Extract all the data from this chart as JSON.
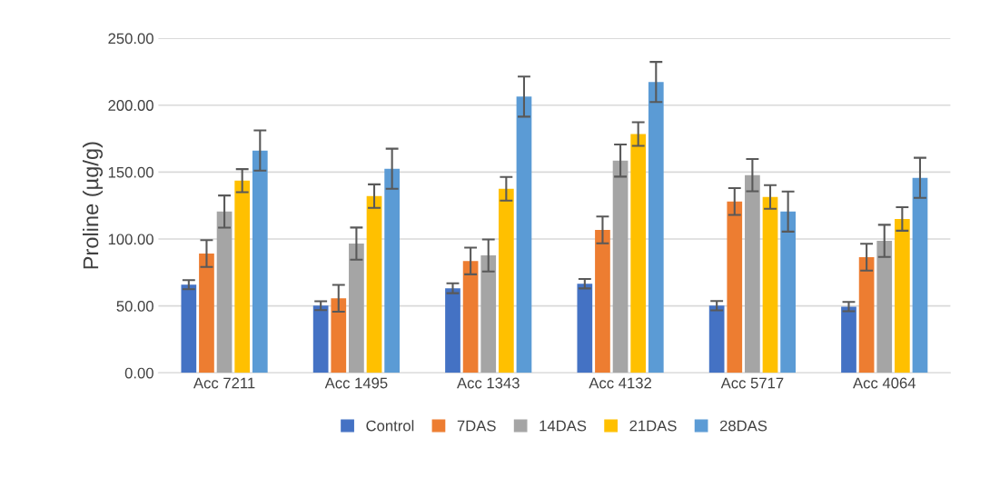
{
  "chart_data": {
    "type": "bar",
    "ylabel": "Proline (µg/g)",
    "categories": [
      "Acc 7211",
      "Acc 1495",
      "Acc 1343",
      "Acc 4132",
      "Acc 5717",
      "Acc 4064"
    ],
    "series": [
      {
        "name": "Control",
        "color": "#4472c4",
        "values": [
          65.9,
          50.2,
          63.2,
          66.6,
          50.2,
          49.5
        ],
        "errors": [
          3.4,
          3.3,
          3.7,
          3.5,
          3.5,
          3.5
        ]
      },
      {
        "name": "7DAS",
        "color": "#ed7d31",
        "values": [
          89.1,
          55.7,
          83.6,
          106.8,
          128,
          86.4
        ],
        "errors": [
          10,
          10,
          10,
          10,
          10,
          10
        ]
      },
      {
        "name": "14DAS",
        "color": "#a5a5a5",
        "values": [
          120.5,
          96.6,
          87.7,
          158.6,
          147.7,
          98.6
        ],
        "errors": [
          12,
          12,
          12,
          12,
          12,
          12
        ]
      },
      {
        "name": "21DAS",
        "color": "#ffc000",
        "values": [
          143.6,
          132,
          137.5,
          178.4,
          131.4,
          115
        ],
        "errors": [
          8.6,
          8.8,
          8.8,
          8.8,
          8.8,
          8.8
        ]
      },
      {
        "name": "28DAS",
        "color": "#5b9bd5",
        "values": [
          166.1,
          152.5,
          206.4,
          217.3,
          120.5,
          145.7
        ],
        "errors": [
          15,
          15,
          15,
          15,
          15,
          15
        ]
      }
    ],
    "ylim": [
      0,
      250
    ],
    "yticks": [
      {
        "value": 0,
        "label": "0.00"
      },
      {
        "value": 50,
        "label": "50.00"
      },
      {
        "value": 100,
        "label": "100.00"
      },
      {
        "value": 150,
        "label": "150.00"
      },
      {
        "value": 200,
        "label": "200.00"
      },
      {
        "value": 250,
        "label": "250.00"
      }
    ],
    "grid": "y",
    "legend": "bottom"
  }
}
